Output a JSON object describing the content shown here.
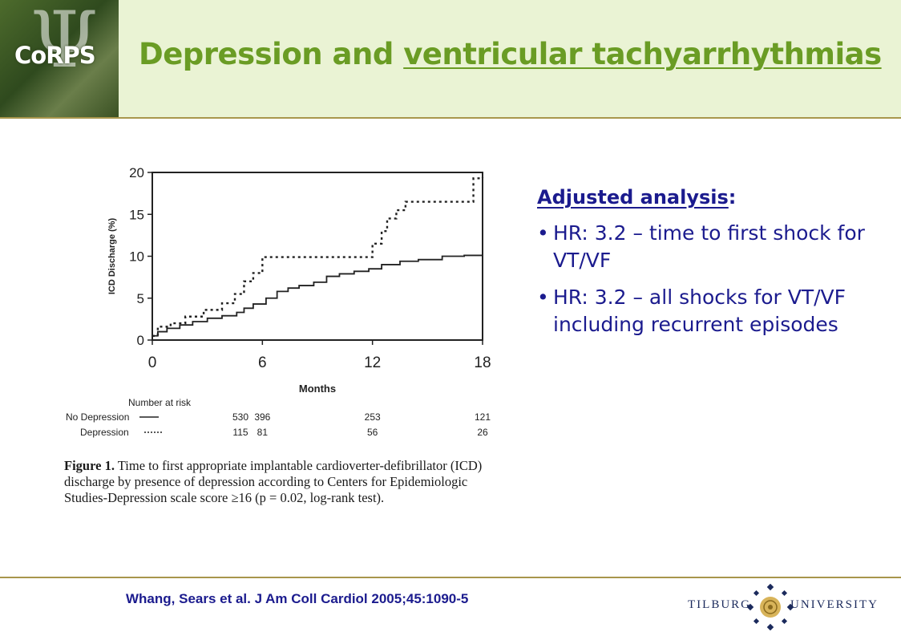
{
  "header": {
    "logo_text": "CoRPS",
    "title_plain": "Depression and ",
    "title_underlined": "ventricular tachyarrhythmias",
    "colors": {
      "title": "#6a9c24",
      "band": "#eaf3d4",
      "rule": "#a8964c"
    }
  },
  "chart_data": {
    "type": "line",
    "ylabel": "ICD Discharge (%)",
    "xlabel": "Months",
    "xlim": [
      0,
      18
    ],
    "ylim": [
      0,
      20
    ],
    "x_ticks": [
      "0",
      "6",
      "12",
      "18"
    ],
    "y_ticks": [
      "0",
      "5",
      "10",
      "15",
      "20"
    ],
    "grid": false,
    "series": [
      {
        "name": "No Depression",
        "style": "solid",
        "points": [
          [
            0,
            0.5
          ],
          [
            0.3,
            1
          ],
          [
            0.8,
            1.4
          ],
          [
            1.5,
            1.8
          ],
          [
            2.2,
            2.2
          ],
          [
            3.0,
            2.6
          ],
          [
            3.8,
            2.9
          ],
          [
            4.6,
            3.3
          ],
          [
            5.0,
            3.8
          ],
          [
            5.5,
            4.3
          ],
          [
            6.2,
            5.0
          ],
          [
            6.8,
            5.8
          ],
          [
            7.4,
            6.2
          ],
          [
            8.0,
            6.5
          ],
          [
            8.8,
            6.9
          ],
          [
            9.5,
            7.6
          ],
          [
            10.2,
            7.9
          ],
          [
            11.0,
            8.2
          ],
          [
            11.8,
            8.5
          ],
          [
            12.5,
            9.0
          ],
          [
            13.5,
            9.4
          ],
          [
            14.5,
            9.6
          ],
          [
            15.8,
            10.0
          ],
          [
            17.0,
            10.1
          ],
          [
            18,
            10.4
          ]
        ]
      },
      {
        "name": "Depression",
        "style": "dotted",
        "points": [
          [
            0,
            0.5
          ],
          [
            0.3,
            1.6
          ],
          [
            1.0,
            2.0
          ],
          [
            1.8,
            2.8
          ],
          [
            2.8,
            3.6
          ],
          [
            3.8,
            4.4
          ],
          [
            4.5,
            5.5
          ],
          [
            5.0,
            7.0
          ],
          [
            5.5,
            8.0
          ],
          [
            6.0,
            9.9
          ],
          [
            7.5,
            9.9
          ],
          [
            9.0,
            9.9
          ],
          [
            10.5,
            9.9
          ],
          [
            11.8,
            9.9
          ],
          [
            12.0,
            11.5
          ],
          [
            12.5,
            13.0
          ],
          [
            12.8,
            14.5
          ],
          [
            13.3,
            15.5
          ],
          [
            13.8,
            16.5
          ],
          [
            15.5,
            16.5
          ],
          [
            17.2,
            16.5
          ],
          [
            17.5,
            19.3
          ],
          [
            18,
            19.4
          ]
        ]
      }
    ],
    "risk_table": {
      "title": "Number at risk",
      "rows": [
        {
          "label": "No Depression",
          "values": [
            "530",
            "396",
            "253",
            "121"
          ]
        },
        {
          "label": "Depression",
          "values": [
            "115",
            "81",
            "56",
            "26"
          ]
        }
      ]
    },
    "caption_bold": "Figure 1.",
    "caption_text": " Time to first appropriate implantable cardioverter-defibrillator (ICD) discharge by presence of depression according to Centers for Epidemiologic Studies-Depression scale score ≥16 (p = 0.02, log-rank test)."
  },
  "panel": {
    "heading_underlined": "Adjusted analysis",
    "heading_suffix": ":",
    "bullet_glyph": "•",
    "bullets": [
      "HR: 3.2 – time to first shock for VT/VF",
      "HR: 3.2 – all shocks for VT/VF including recurrent episodes"
    ]
  },
  "footer": {
    "citation": "Whang, Sears et al. J Am Coll Cardiol 2005;45:1090-5",
    "university_left": "TILBURG",
    "university_right": "UNIVERSITY"
  }
}
